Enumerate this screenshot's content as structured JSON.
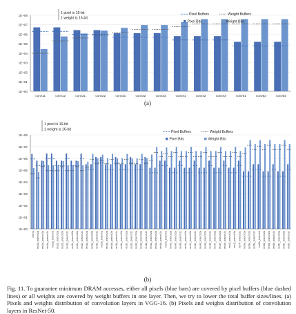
{
  "chart_data": [
    {
      "type": "bar",
      "panel_label": "(a)",
      "x": [
        "conv11",
        "conv12",
        "conv21",
        "conv22",
        "conv31",
        "conv32",
        "conv33",
        "conv41",
        "conv42",
        "conv43",
        "conv51",
        "conv52",
        "conv53"
      ],
      "series": [
        {
          "name": "Pixel Bits",
          "type": "bar",
          "color": "#4a6fb5",
          "values": [
            5300000.0,
            5300000.0,
            2700000.0,
            2700000.0,
            1300000.0,
            1300000.0,
            1300000.0,
            640000.0,
            640000.0,
            640000.0,
            160000.0,
            160000.0,
            160000.0
          ]
        },
        {
          "name": "Weight Bits",
          "type": "bar",
          "color": "#6c95ce",
          "values": [
            28000.0,
            590000.0,
            1200000.0,
            2400000.0,
            4700000.0,
            9400000.0,
            9400000.0,
            19000000.0,
            38000000.0,
            38000000.0,
            38000000.0,
            38000000.0,
            38000000.0
          ]
        },
        {
          "name": "Pixel Buffers",
          "type": "line",
          "color": "#3d6fb6",
          "values": [
            2000000.0,
            2000000.0,
            1000000.0,
            1000000.0,
            500000.0,
            500000.0,
            500000.0,
            250000.0,
            250000.0,
            250000.0,
            60000.0,
            60000.0,
            60000.0
          ]
        },
        {
          "name": "Weight Buffers",
          "type": "line",
          "color": "#555555",
          "values": [
            10000.0,
            200000.0,
            400000.0,
            800000.0,
            1600000.0,
            3200000.0,
            3200000.0,
            6400000.0,
            12000000.0,
            12000000.0,
            12000000.0,
            12000000.0,
            12000000.0
          ]
        }
      ],
      "yscale": "log",
      "yticks": [
        "1E+08",
        "1E+07",
        "1E+06",
        "1E+05",
        "1E+04",
        "1E+03",
        "1E+02",
        "1E+01",
        "1E+00"
      ],
      "ylim": [
        1,
        100000000
      ],
      "annotation": [
        "1 pixel is 16-bit",
        "1 weight is 16-bit"
      ],
      "legend": "top-right"
    },
    {
      "type": "bar",
      "panel_label": "(b)",
      "x": [
        "conv1",
        "res2a_branch2a",
        "res2a_branch2b",
        "res2a_branch2c",
        "res2a_branch1",
        "res2b_branch2a",
        "res2b_branch2b",
        "res2b_branch2c",
        "res2c_branch2a",
        "res2c_branch2b",
        "res2c_branch2c",
        "res3a_branch2a",
        "res3a_branch2b",
        "res3a_branch2c",
        "res3a_branch1",
        "res3b_branch2a",
        "res3b_branch2b",
        "res3b_branch2c",
        "res3c_branch2a",
        "res3c_branch2b",
        "res3c_branch2c",
        "res3d_branch2a",
        "res3d_branch2b",
        "res3d_branch2c",
        "res4a_branch2a",
        "res4a_branch2b",
        "res4a_branch2c",
        "res4a_branch1",
        "res4b_branch2a",
        "res4b_branch2b",
        "res4b_branch2c",
        "res4c_branch2a",
        "res4c_branch2b",
        "res4c_branch2c",
        "res4d_branch2a",
        "res4d_branch2b",
        "res4d_branch2c",
        "res4e_branch2a",
        "res4e_branch2b",
        "res4e_branch2c",
        "res4f_branch2a",
        "res4f_branch2b",
        "res4f_branch2c",
        "res5a_branch2a",
        "res5a_branch2b",
        "res5a_branch2c",
        "res5a_branch1",
        "res5b_branch2a",
        "res5b_branch2b",
        "res5b_branch2c",
        "res5c_branch2a",
        "res5c_branch2b",
        "res5c_branch2c"
      ],
      "series": [
        {
          "name": "Pixel Bits",
          "type": "bar",
          "color": "#4a6fb5",
          "values": [
            2400000.0,
            640000.0,
            640000.0,
            2600000.0,
            2600000.0,
            640000.0,
            640000.0,
            2600000.0,
            640000.0,
            640000.0,
            2600000.0,
            320000.0,
            320000.0,
            1300000.0,
            1300000.0,
            320000.0,
            320000.0,
            1300000.0,
            320000.0,
            320000.0,
            1300000.0,
            320000.0,
            320000.0,
            1300000.0,
            160000.0,
            160000.0,
            640000.0,
            640000.0,
            160000.0,
            160000.0,
            640000.0,
            160000.0,
            160000.0,
            640000.0,
            160000.0,
            160000.0,
            640000.0,
            160000.0,
            160000.0,
            640000.0,
            160000.0,
            160000.0,
            640000.0,
            80000.0,
            80000.0,
            320000.0,
            320000.0,
            80000.0,
            80000.0,
            320000.0,
            80000.0,
            80000.0,
            320000.0
          ]
        },
        {
          "name": "Weight Bits",
          "type": "bar",
          "color": "#6c95ce",
          "values": [
            150000.0,
            66000.0,
            590000.0,
            260000.0,
            260000.0,
            260000.0,
            590000.0,
            260000.0,
            260000.0,
            590000.0,
            260000.0,
            520000.0,
            2400000.0,
            1000000.0,
            2100000.0,
            1000000.0,
            2400000.0,
            1000000.0,
            1000000.0,
            2400000.0,
            1000000.0,
            1000000.0,
            2400000.0,
            1000000.0,
            2100000.0,
            9400000.0,
            4200000.0,
            8400000.0,
            4200000.0,
            9400000.0,
            4200000.0,
            4200000.0,
            9400000.0,
            4200000.0,
            4200000.0,
            9400000.0,
            4200000.0,
            4200000.0,
            9400000.0,
            4200000.0,
            4200000.0,
            9400000.0,
            4200000.0,
            8400000.0,
            38000000.0,
            17000000.0,
            34000000.0,
            17000000.0,
            38000000.0,
            17000000.0,
            17000000.0,
            38000000.0,
            17000000.0
          ]
        },
        {
          "name": "Pixel Buffers",
          "type": "line",
          "color": "#3d6fb6",
          "values": [
            900000.0,
            240000.0,
            240000.0,
            960000.0,
            960000.0,
            240000.0,
            240000.0,
            960000.0,
            240000.0,
            240000.0,
            960000.0,
            120000.0,
            120000.0,
            480000.0,
            480000.0,
            120000.0,
            120000.0,
            480000.0,
            120000.0,
            120000.0,
            480000.0,
            120000.0,
            120000.0,
            480000.0,
            60000.0,
            60000.0,
            240000.0,
            240000.0,
            60000.0,
            60000.0,
            240000.0,
            60000.0,
            60000.0,
            240000.0,
            60000.0,
            60000.0,
            240000.0,
            60000.0,
            60000.0,
            240000.0,
            60000.0,
            60000.0,
            240000.0,
            30000.0,
            30000.0,
            120000.0,
            120000.0,
            30000.0,
            30000.0,
            120000.0,
            30000.0,
            30000.0,
            120000.0
          ]
        },
        {
          "name": "Weight Buffers",
          "type": "line",
          "color": "#555555",
          "values": [
            50000.0,
            22000.0,
            200000.0,
            90000.0,
            90000.0,
            90000.0,
            200000.0,
            90000.0,
            90000.0,
            200000.0,
            90000.0,
            180000.0,
            800000.0,
            350000.0,
            700000.0,
            350000.0,
            800000.0,
            350000.0,
            350000.0,
            800000.0,
            350000.0,
            350000.0,
            800000.0,
            350000.0,
            700000.0,
            3200000.0,
            1400000.0,
            2800000.0,
            1400000.0,
            3200000.0,
            1400000.0,
            1400000.0,
            3200000.0,
            1400000.0,
            1400000.0,
            3200000.0,
            1400000.0,
            1400000.0,
            3200000.0,
            1400000.0,
            1400000.0,
            3200000.0,
            1400000.0,
            2800000.0,
            13000000.0,
            5600000.0,
            11000000.0,
            5600000.0,
            13000000.0,
            5600000.0,
            5600000.0,
            13000000.0,
            5600000.0
          ]
        }
      ],
      "yscale": "log",
      "yticks": [
        "1E+08",
        "1E+07",
        "1E+06",
        "1E+05",
        "1E+04",
        "1E+03",
        "1E+02",
        "1E+01",
        "1E+00"
      ],
      "ylim": [
        1,
        100000000
      ],
      "annotation": [
        "1 pixel is 16-bit",
        "1 weight is 16-bit"
      ],
      "legend": "top-right"
    }
  ],
  "caption": "Fig. 11.   To guarantee minimum DRAM accesses, either all pixels (blue bars) are covered by pixel buffers (blue dashed lines) or all weights are covered by weight buffers in one layer. Then, we try to lower the total buffer sizes/lines. (a) Pixels and weights distribution of convolution layers in VGG-16. (b) Pixels and weights distribution of convolution layers in ResNet-50."
}
